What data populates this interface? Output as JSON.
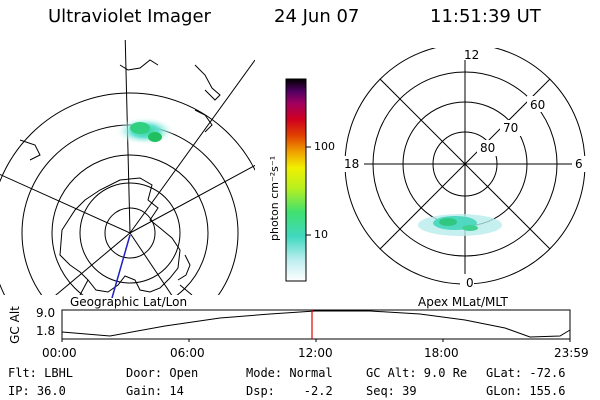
{
  "header": {
    "instrument": "Ultraviolet Imager",
    "date": "24 Jun 07",
    "time": "11:51:39 UT"
  },
  "geo_panel": {
    "label": "Geographic Lat/Lon"
  },
  "mag_panel": {
    "label": "Apex MLat/MLT",
    "mlt_labels": {
      "top": "12",
      "left": "18",
      "right": "6",
      "bottom": "0"
    },
    "lat_labels": [
      "60",
      "70",
      "80"
    ]
  },
  "colorbar": {
    "unit_label": "photon cm⁻²s⁻¹",
    "ticks": [
      "100",
      "10"
    ],
    "scale": "log",
    "colors": [
      "#f0f8f8",
      "#b0e8e8",
      "#40d8c0",
      "#40e070",
      "#b0f020",
      "#f0f000",
      "#f0a000",
      "#e04000",
      "#d00020",
      "#a00060",
      "#500060",
      "#000000"
    ]
  },
  "altitude_strip": {
    "ylabel": "GC Alt",
    "y_ticks": [
      "9.0",
      "1.8"
    ],
    "x_ticks": [
      "00:00",
      "06:00",
      "12:00",
      "18:00",
      "23:59"
    ],
    "marker_color": "#e00000"
  },
  "footer": {
    "flt": "Flt: LBHL",
    "ip": "IP: 36.0",
    "door": "Door: Open",
    "gain": "Gain: 14",
    "mode": "Mode: Normal",
    "dsp": "Dsp:    -2.2",
    "gc_alt": "GC Alt: 9.0 Re",
    "seq": "Seq: 39",
    "glat": "GLat: -72.6",
    "glon": "GLon: 155.6"
  }
}
